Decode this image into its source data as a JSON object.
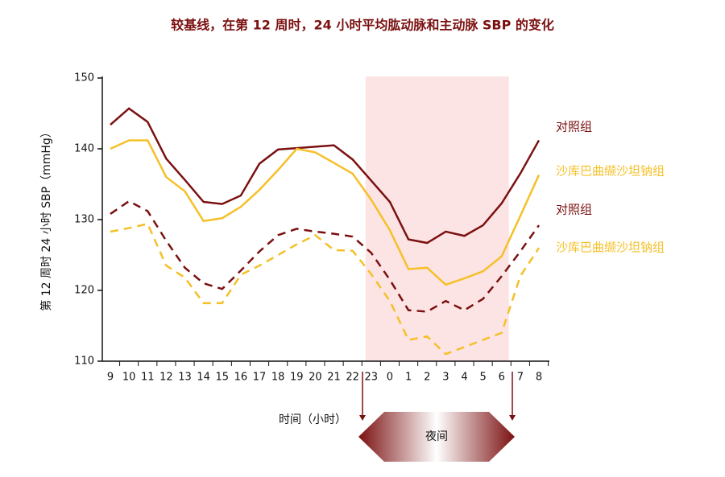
{
  "chart_data": {
    "type": "line",
    "title": "较基线，在第 12 周时，24 小时平均肱动脉和主动脉 SBP 的变化",
    "x_label": "时间（小时）",
    "y_label": "第 12 周时 24 小时 SBP（mmHg）",
    "annotation": "夜间",
    "categories": [
      "9",
      "10",
      "11",
      "12",
      "13",
      "14",
      "15",
      "16",
      "17",
      "18",
      "19",
      "20",
      "21",
      "22",
      "23",
      "0",
      "1",
      "2",
      "3",
      "4",
      "5",
      "6",
      "7",
      "8"
    ],
    "ylim": [
      110,
      150
    ],
    "yticks": [
      110,
      120,
      130,
      140,
      150
    ],
    "series": [
      {
        "name": "对照组",
        "color": "#7b1010",
        "dash": false,
        "values": [
          143.4,
          145.7,
          143.8,
          138.6,
          135.6,
          132.5,
          132.2,
          133.4,
          137.9,
          139.9,
          140.1,
          140.3,
          140.5,
          138.5,
          135.5,
          132.5,
          127.2,
          126.7,
          128.3,
          127.7,
          129.2,
          132.3,
          136.5,
          141.2
        ]
      },
      {
        "name": "沙库巴曲缬沙坦钠组",
        "color": "#f5c028",
        "dash": false,
        "values": [
          140.0,
          141.2,
          141.2,
          136.0,
          134.0,
          129.8,
          130.2,
          131.8,
          134.2,
          137.0,
          140.0,
          139.5,
          138.0,
          136.5,
          132.8,
          128.5,
          123.0,
          123.2,
          120.8,
          121.7,
          122.7,
          124.8,
          130.5,
          136.3
        ]
      },
      {
        "name": "对照组",
        "color": "#7b1010",
        "dash": true,
        "values": [
          130.8,
          132.6,
          131.2,
          127.0,
          123.2,
          121.0,
          120.2,
          122.8,
          125.5,
          127.8,
          128.7,
          128.3,
          128.0,
          127.6,
          125.3,
          121.5,
          117.2,
          117.0,
          118.5,
          117.2,
          118.8,
          122.0,
          125.5,
          129.2
        ]
      },
      {
        "name": "沙库巴曲缬沙坦钠组",
        "color": "#f5c028",
        "dash": true,
        "values": [
          128.3,
          128.8,
          129.4,
          123.5,
          121.8,
          118.2,
          118.2,
          122.2,
          123.5,
          125.0,
          126.5,
          127.8,
          125.7,
          125.6,
          122.3,
          118.5,
          113.0,
          113.5,
          111.0,
          112.0,
          113.0,
          114.0,
          122.0,
          126.0
        ]
      }
    ]
  }
}
